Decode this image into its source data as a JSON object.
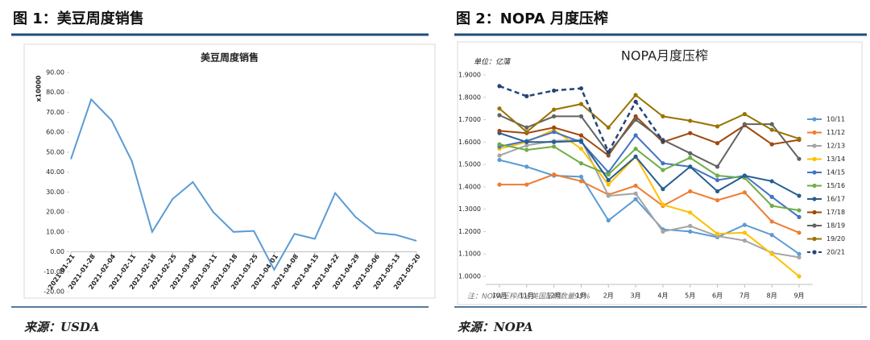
{
  "chart_data": [
    {
      "type": "line",
      "caption": "图 1：美豆周度销售",
      "title": "美豆周度销售",
      "ylabel": "x10000",
      "source": "来源：USDA",
      "categories": [
        "2021-01-21",
        "2021-01-28",
        "2021-02-04",
        "2021-02-11",
        "2021-02-18",
        "2021-02-25",
        "2021-03-04",
        "2021-03-11",
        "2021-03-18",
        "2021-03-25",
        "2021-04-01",
        "2021-04-08",
        "2021-04-15",
        "2021-04-22",
        "2021-04-29",
        "2021-05-06",
        "2021-05-13",
        "2021-05-20"
      ],
      "values": [
        46.5,
        76.5,
        66,
        45.5,
        10,
        26.5,
        35,
        20,
        10,
        10.5,
        -9,
        9,
        6.5,
        29.5,
        17.5,
        9.5,
        8.5,
        5.5
      ],
      "color": "#5b9bd5",
      "ylim": [
        -20,
        90
      ],
      "yticks": [
        {
          "value": -20,
          "label": "-20.00"
        },
        {
          "value": -10,
          "label": "-10.00"
        },
        {
          "value": 0,
          "label": "0.00"
        },
        {
          "value": 10,
          "label": "10.00"
        },
        {
          "value": 20,
          "label": "20.00"
        },
        {
          "value": 30,
          "label": "30.00"
        },
        {
          "value": 40,
          "label": "40.00"
        },
        {
          "value": 50,
          "label": "50.00"
        },
        {
          "value": 60,
          "label": "60.00"
        },
        {
          "value": 70,
          "label": "70.00"
        },
        {
          "value": 80,
          "label": "80.00"
        },
        {
          "value": 90,
          "label": "90.00"
        }
      ],
      "grid": false
    },
    {
      "type": "line",
      "caption": "图 2：NOPA 月度压榨",
      "title": "NOPA月度压榨",
      "subtitle": "单位：亿蒲",
      "note": "注：NOPA压榨约占美国压榨数量95%",
      "source": "来源：NOPA",
      "categories": [
        "10月",
        "11月",
        "12月",
        "1月",
        "2月",
        "3月",
        "4月",
        "5月",
        "6月",
        "7月",
        "8月",
        "9月"
      ],
      "ylim": [
        1.0,
        1.9
      ],
      "yticks": [
        {
          "value": 1.0,
          "label": "1.0000"
        },
        {
          "value": 1.1,
          "label": "1.1000"
        },
        {
          "value": 1.2,
          "label": "1.2000"
        },
        {
          "value": 1.3,
          "label": "1.3000"
        },
        {
          "value": 1.4,
          "label": "1.4000"
        },
        {
          "value": 1.5,
          "label": "1.5000"
        },
        {
          "value": 1.6,
          "label": "1.6000"
        },
        {
          "value": 1.7,
          "label": "1.7000"
        },
        {
          "value": 1.8,
          "label": "1.8000"
        },
        {
          "value": 1.9,
          "label": "1.9000"
        }
      ],
      "grid": false,
      "legend": "right",
      "series": [
        {
          "name": "10/11",
          "color": "#5b9bd5",
          "values": [
            1.52,
            1.49,
            1.45,
            1.445,
            1.25,
            1.345,
            1.21,
            1.2,
            1.175,
            1.23,
            1.185,
            1.1
          ]
        },
        {
          "name": "11/12",
          "color": "#ed7d31",
          "values": [
            1.41,
            1.41,
            1.455,
            1.425,
            1.365,
            1.405,
            1.315,
            1.38,
            1.34,
            1.375,
            1.245,
            1.195
          ]
        },
        {
          "name": "12/13",
          "color": "#a5a5a5",
          "values": [
            1.54,
            1.585,
            1.605,
            1.61,
            1.36,
            1.37,
            1.2,
            1.225,
            1.18,
            1.16,
            1.105,
            1.085
          ]
        },
        {
          "name": "13/14",
          "color": "#ffc000",
          "values": [
            1.57,
            1.6,
            1.655,
            1.57,
            1.41,
            1.535,
            1.32,
            1.285,
            1.19,
            1.195,
            1.1,
            1.0
          ]
        },
        {
          "name": "14/15",
          "color": "#4472c4",
          "values": [
            1.58,
            1.605,
            1.645,
            1.6,
            1.465,
            1.63,
            1.505,
            1.49,
            1.43,
            1.45,
            1.355,
            1.265
          ]
        },
        {
          "name": "15/16",
          "color": "#70ad47",
          "values": [
            1.59,
            1.565,
            1.58,
            1.505,
            1.455,
            1.57,
            1.475,
            1.53,
            1.45,
            1.44,
            1.315,
            1.295
          ]
        },
        {
          "name": "16/17",
          "color": "#255e91",
          "values": [
            1.64,
            1.6,
            1.6,
            1.605,
            1.43,
            1.535,
            1.39,
            1.49,
            1.38,
            1.45,
            1.425,
            1.36
          ]
        },
        {
          "name": "17/18",
          "color": "#9e480e",
          "values": [
            1.65,
            1.64,
            1.665,
            1.63,
            1.54,
            1.715,
            1.6,
            1.64,
            1.595,
            1.675,
            1.59,
            1.61
          ]
        },
        {
          "name": "18/19",
          "color": "#636363",
          "values": [
            1.72,
            1.665,
            1.715,
            1.715,
            1.55,
            1.7,
            1.61,
            1.55,
            1.49,
            1.68,
            1.68,
            1.525
          ]
        },
        {
          "name": "19/20",
          "color": "#997300",
          "values": [
            1.75,
            1.645,
            1.745,
            1.77,
            1.665,
            1.81,
            1.715,
            1.695,
            1.67,
            1.725,
            1.655,
            1.615
          ]
        },
        {
          "name": "20/21",
          "color": "#264478",
          "dashed": true,
          "values": [
            1.85,
            1.805,
            1.83,
            1.84,
            1.555,
            1.78,
            1.605,
            null,
            null,
            null,
            null,
            null
          ]
        }
      ]
    }
  ]
}
